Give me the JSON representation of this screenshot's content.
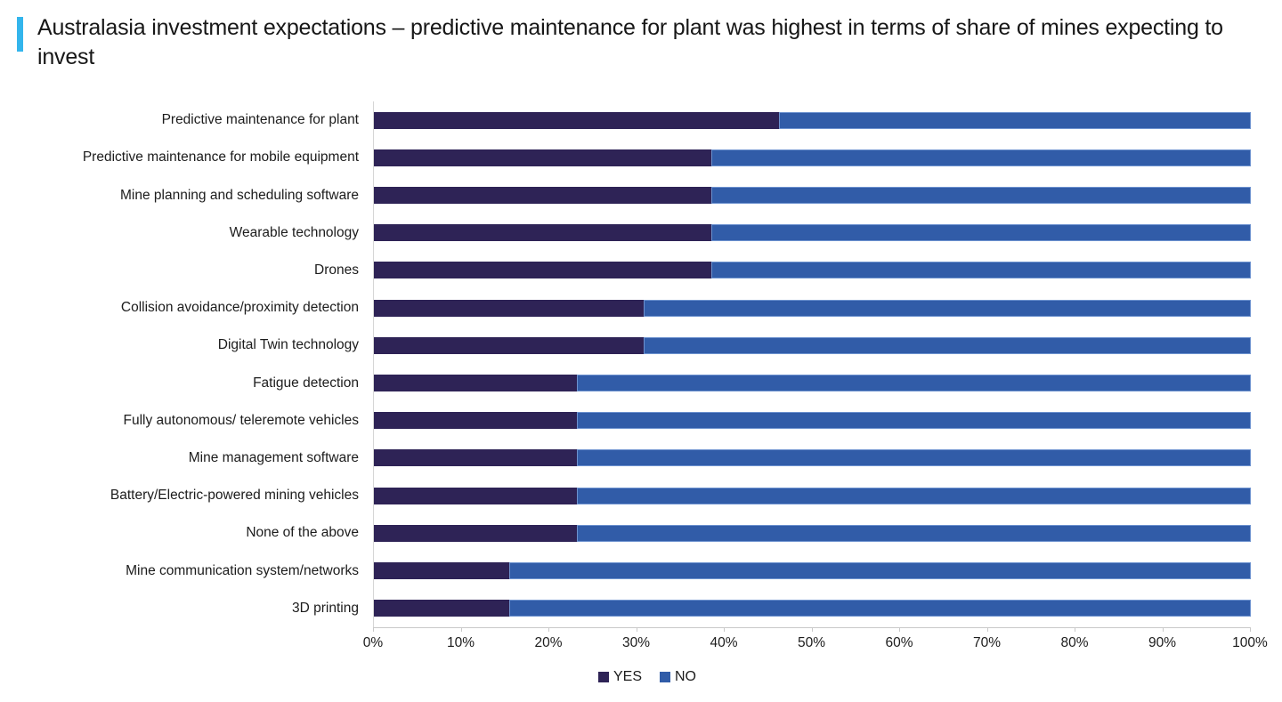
{
  "header": {
    "title": "Australasia investment expectations – predictive maintenance for plant was highest in terms of share of mines expecting to invest",
    "accent_color": "#33b5ec"
  },
  "chart_data": {
    "type": "bar",
    "orientation": "horizontal",
    "stacked": true,
    "unit": "percent",
    "title": "Australasia investment expectations – predictive maintenance for plant was highest in terms of share of mines expecting to invest",
    "categories": [
      "Predictive maintenance for plant",
      "Predictive maintenance for mobile equipment",
      "Mine planning and scheduling software",
      "Wearable technology",
      "Drones",
      "Collision avoidance/proximity detection",
      "Digital Twin technology",
      "Fatigue detection",
      "Fully autonomous/ teleremote vehicles",
      "Mine management software",
      "Battery/Electric-powered mining vehicles",
      "None of the above",
      "Mine communication system/networks",
      "3D printing"
    ],
    "series": [
      {
        "name": "YES",
        "color": "#2e2356",
        "values": [
          46.2,
          38.5,
          38.5,
          38.5,
          38.5,
          30.8,
          30.8,
          23.1,
          23.1,
          23.1,
          23.1,
          23.1,
          15.4,
          15.4
        ]
      },
      {
        "name": "NO",
        "color": "#315ca8",
        "values": [
          53.8,
          61.5,
          61.5,
          61.5,
          61.5,
          69.2,
          69.2,
          76.9,
          76.9,
          76.9,
          76.9,
          76.9,
          84.6,
          84.6
        ]
      }
    ],
    "xlabel": "",
    "ylabel": "",
    "xlim": [
      0,
      100
    ],
    "x_ticks": [
      "0%",
      "10%",
      "20%",
      "30%",
      "40%",
      "50%",
      "60%",
      "70%",
      "80%",
      "90%",
      "100%"
    ],
    "gridlines": false,
    "legend_position": "bottom-center",
    "axis_color": "#c9c9c9"
  }
}
